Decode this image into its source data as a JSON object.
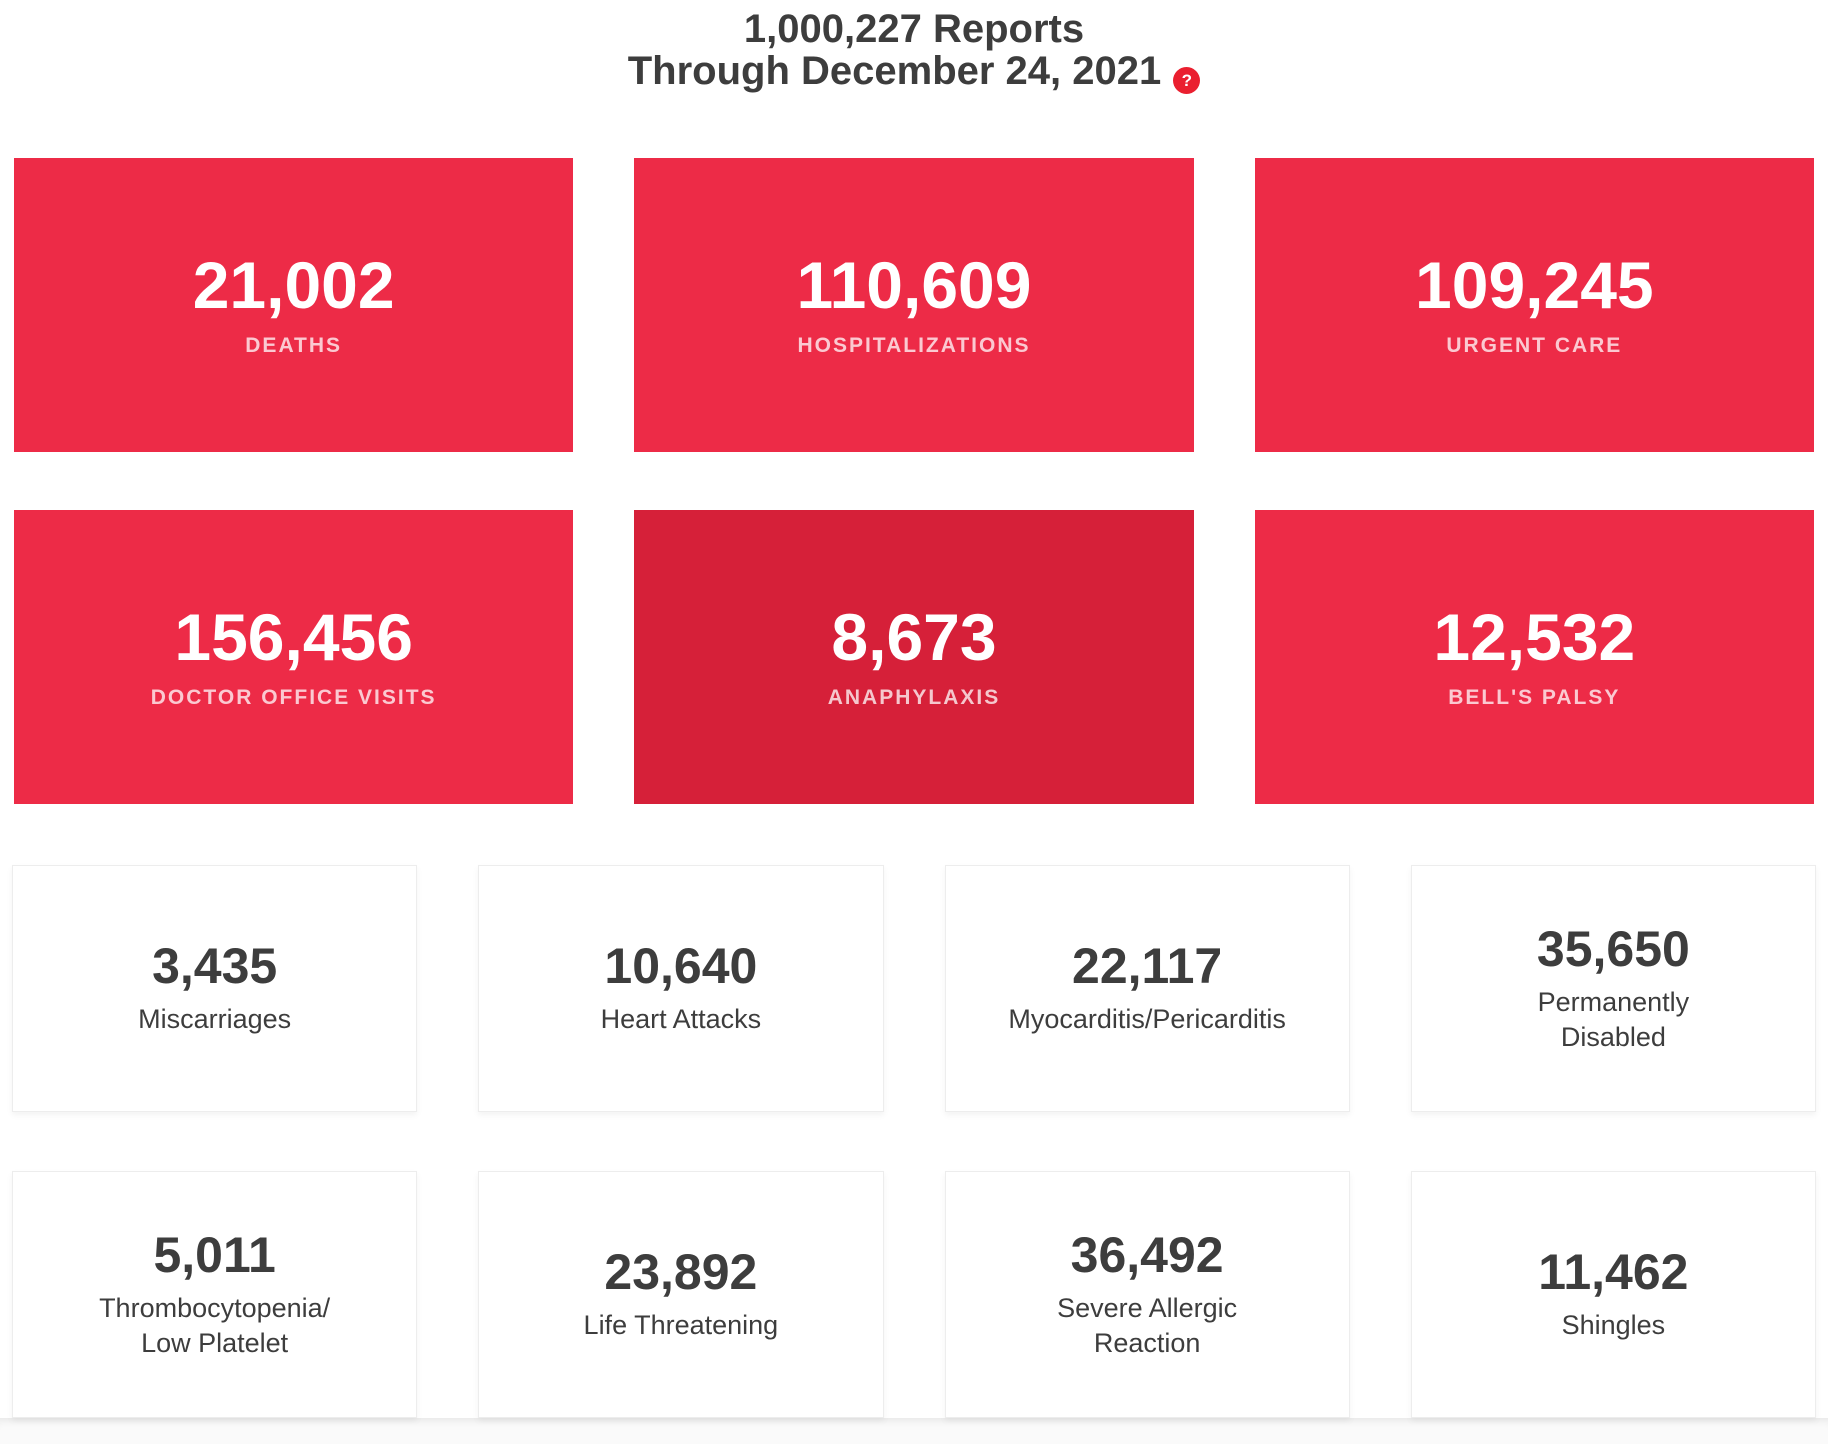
{
  "header": {
    "line1": "1,000,227 Reports",
    "line2": "Through December 24, 2021",
    "help_icon": "?"
  },
  "colors": {
    "card_red": "#ed2b47",
    "card_red_dark": "#d62039",
    "help_red": "#ea1f2f",
    "label_on_red": "rgba(255,255,255,0.75)",
    "text_dark": "#3d3d3d"
  },
  "red_cards": [
    {
      "value": "21,002",
      "label": "DEATHS"
    },
    {
      "value": "110,609",
      "label": "HOSPITALIZATIONS"
    },
    {
      "value": "109,245",
      "label": "URGENT CARE"
    },
    {
      "value": "156,456",
      "label": "DOCTOR OFFICE VISITS"
    },
    {
      "value": "8,673",
      "label": "ANAPHYLAXIS"
    },
    {
      "value": "12,532",
      "label": "BELL'S PALSY"
    }
  ],
  "white_cards": [
    {
      "value": "3,435",
      "label": "Miscarriages"
    },
    {
      "value": "10,640",
      "label": "Heart Attacks"
    },
    {
      "value": "22,117",
      "label": "Myocarditis/Pericarditis"
    },
    {
      "value": "35,650",
      "label": "Permanently\nDisabled"
    },
    {
      "value": "5,011",
      "label": "Thrombocytopenia/\nLow Platelet"
    },
    {
      "value": "23,892",
      "label": "Life Threatening"
    },
    {
      "value": "36,492",
      "label": "Severe Allergic\nReaction"
    },
    {
      "value": "11,462",
      "label": "Shingles"
    }
  ]
}
